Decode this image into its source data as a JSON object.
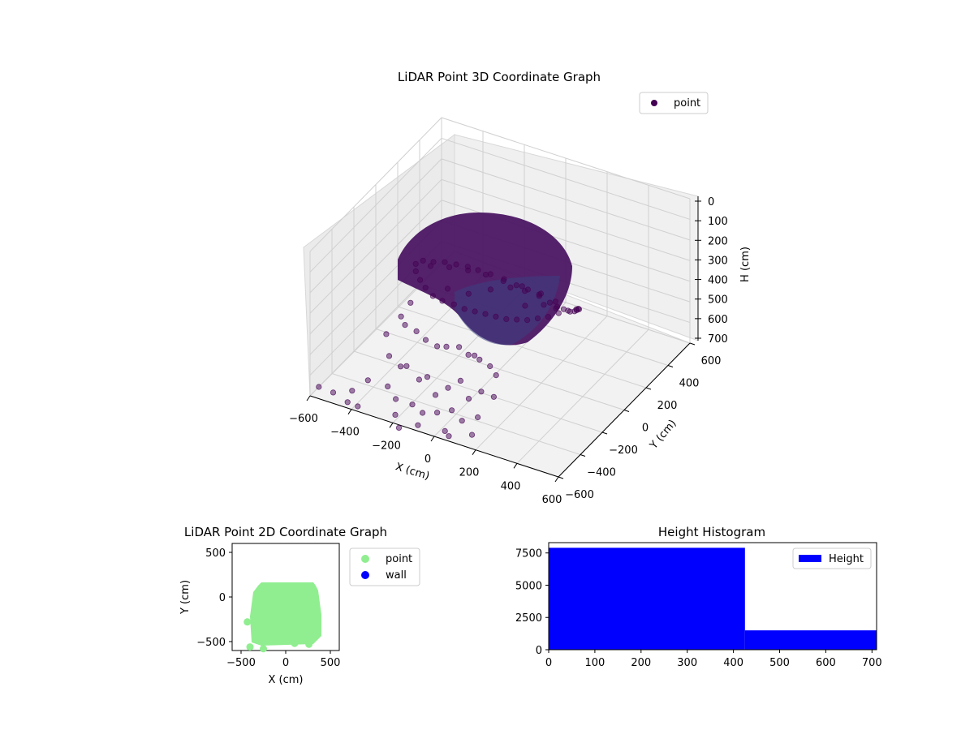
{
  "chart_data": [
    {
      "type": "scatter",
      "projection": "3d",
      "title": "LiDAR Point 3D Coordinate Graph",
      "xlabel": "X (cm)",
      "ylabel": "Y (cm)",
      "zlabel": "H (cm)",
      "xlim": [
        -600,
        600
      ],
      "ylim": [
        -600,
        600
      ],
      "zlim": [
        700,
        0
      ],
      "xticks": [
        "−600",
        "−400",
        "−200",
        "0",
        "200",
        "400",
        "600"
      ],
      "yticks": [
        "−600",
        "−400",
        "−200",
        "0",
        "200",
        "400",
        "600"
      ],
      "zticks": [
        "0",
        "100",
        "200",
        "300",
        "400",
        "500",
        "600",
        "700"
      ],
      "grid": true,
      "legend": {
        "position": "upper-right",
        "entries": [
          "point"
        ]
      },
      "series": [
        {
          "name": "point",
          "color": "#440154",
          "points": [
            [
              -280,
              -240,
              150
            ],
            [
              -250,
              -230,
              130
            ],
            [
              -200,
              -230,
              120
            ],
            [
              -150,
              -220,
              110
            ],
            [
              -100,
              -210,
              110
            ],
            [
              -50,
              -200,
              110
            ],
            [
              0,
              -200,
              110
            ],
            [
              60,
              -200,
              110
            ],
            [
              120,
              -190,
              120
            ],
            [
              180,
              -190,
              130
            ],
            [
              230,
              -180,
              140
            ],
            [
              280,
              -170,
              160
            ],
            [
              320,
              -150,
              190
            ],
            [
              340,
              -120,
              220
            ],
            [
              350,
              -80,
              250
            ],
            [
              360,
              -40,
              280
            ],
            [
              360,
              0,
              300
            ],
            [
              350,
              40,
              320
            ],
            [
              340,
              80,
              340
            ],
            [
              320,
              110,
              360
            ],
            [
              300,
              130,
              380
            ],
            [
              260,
              130,
              400
            ],
            [
              220,
              120,
              420
            ],
            [
              180,
              100,
              440
            ],
            [
              140,
              80,
              450
            ],
            [
              100,
              60,
              460
            ],
            [
              60,
              40,
              460
            ],
            [
              20,
              20,
              460
            ],
            [
              -20,
              0,
              450
            ],
            [
              -60,
              -20,
              440
            ],
            [
              -100,
              -40,
              430
            ],
            [
              -140,
              -60,
              420
            ],
            [
              -180,
              -80,
              400
            ],
            [
              -220,
              -110,
              380
            ],
            [
              -250,
              -140,
              350
            ],
            [
              -270,
              -170,
              300
            ],
            [
              -280,
              -200,
              250
            ],
            [
              -290,
              -220,
              200
            ],
            [
              -240,
              -180,
              180
            ],
            [
              -160,
              -160,
              170
            ],
            [
              -80,
              -140,
              170
            ],
            [
              0,
              -130,
              170
            ],
            [
              80,
              -120,
              180
            ],
            [
              160,
              -100,
              190
            ],
            [
              240,
              -80,
              210
            ],
            [
              300,
              -60,
              240
            ],
            [
              200,
              -20,
              260
            ],
            [
              120,
              0,
              280
            ],
            [
              40,
              20,
              300
            ],
            [
              -40,
              -10,
              320
            ],
            [
              -120,
              -60,
              340
            ],
            [
              -200,
              -100,
              320
            ],
            [
              100,
              40,
              380
            ],
            [
              180,
              60,
              360
            ],
            [
              260,
              20,
              330
            ],
            [
              -300,
              -250,
              340
            ],
            [
              -330,
              -280,
              400
            ],
            [
              -300,
              -300,
              420
            ],
            [
              -250,
              -290,
              440
            ],
            [
              -200,
              -300,
              460
            ],
            [
              -150,
              -290,
              480
            ],
            [
              -100,
              -300,
              460
            ],
            [
              -60,
              -260,
              470
            ],
            [
              -20,
              -250,
              500
            ],
            [
              20,
              -270,
              480
            ],
            [
              60,
              -300,
              470
            ],
            [
              100,
              -280,
              500
            ],
            [
              140,
              -300,
              520
            ],
            [
              -380,
              -320,
              480
            ],
            [
              -350,
              -350,
              560
            ],
            [
              -300,
              -340,
              600
            ],
            [
              -250,
              -380,
              560
            ],
            [
              -200,
              -360,
              620
            ],
            [
              -150,
              -380,
              580
            ],
            [
              -100,
              -400,
              640
            ],
            [
              -50,
              -380,
              600
            ],
            [
              0,
              -360,
              560
            ],
            [
              50,
              -380,
              620
            ],
            [
              100,
              -360,
              580
            ],
            [
              150,
              -340,
              600
            ],
            [
              -450,
              -500,
              680
            ],
            [
              -400,
              -450,
              640
            ],
            [
              -320,
              -420,
              660
            ],
            [
              -260,
              -460,
              680
            ],
            [
              -180,
              -460,
              680
            ],
            [
              -120,
              -480,
              690
            ],
            [
              -60,
              -460,
              680
            ],
            [
              0,
              -440,
              660
            ],
            [
              60,
              -460,
              680
            ],
            [
              120,
              -430,
              660
            ],
            [
              -520,
              -540,
              690
            ],
            [
              -440,
              -560,
              700
            ],
            [
              -380,
              -580,
              690
            ],
            [
              -220,
              -540,
              700
            ],
            [
              -100,
              -560,
              700
            ],
            [
              20,
              -540,
              700
            ],
            [
              140,
              -520,
              690
            ],
            [
              -600,
              -520,
              700
            ],
            [
              60,
              -580,
              690
            ],
            [
              -160,
              -620,
              700
            ]
          ]
        }
      ]
    },
    {
      "type": "scatter",
      "title": "LiDAR Point 2D Coordinate Graph",
      "xlabel": "X (cm)",
      "ylabel": "Y (cm)",
      "xlim": [
        -600,
        600
      ],
      "ylim": [
        -600,
        600
      ],
      "xticks": [
        "−500",
        "0",
        "500"
      ],
      "yticks": [
        "−500",
        "0",
        "500"
      ],
      "legend": {
        "position": "outside-right",
        "entries": [
          "point",
          "wall"
        ]
      },
      "series": [
        {
          "name": "point",
          "color": "#90ee90",
          "region": {
            "x": [
              -350,
              400
            ],
            "y": [
              -550,
              130
            ]
          },
          "outliers": [
            [
              -430,
              -280
            ],
            [
              -400,
              -560
            ],
            [
              100,
              -520
            ],
            [
              260,
              -530
            ],
            [
              -250,
              -580
            ]
          ]
        },
        {
          "name": "wall",
          "color": "#0000ff",
          "points": []
        }
      ]
    },
    {
      "type": "bar",
      "subtype": "histogram",
      "title": "Height Histogram",
      "xlim": [
        0,
        710
      ],
      "ylim": [
        0,
        8300
      ],
      "xticks": [
        "0",
        "100",
        "200",
        "300",
        "400",
        "500",
        "600",
        "700"
      ],
      "yticks": [
        "0",
        "2500",
        "5000",
        "7500"
      ],
      "legend": {
        "position": "upper-right",
        "entries": [
          "Height"
        ]
      },
      "series": [
        {
          "name": "Height",
          "color": "#0000ff",
          "bins": [
            [
              0,
              425,
              7900
            ],
            [
              425,
              710,
              1500
            ]
          ]
        }
      ]
    }
  ]
}
